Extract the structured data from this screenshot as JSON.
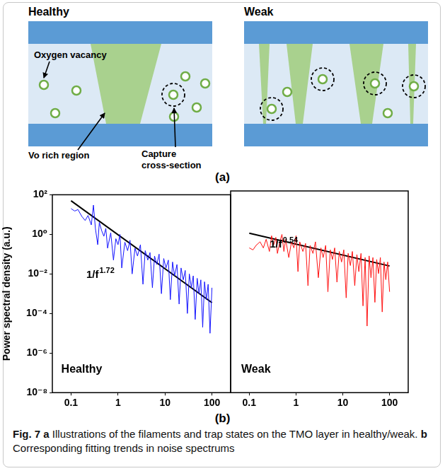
{
  "figure": {
    "panel_letters": [
      "(a)",
      "(b)"
    ],
    "caption": {
      "label": "Fig. 7",
      "parts": [
        {
          "letter": "a",
          "text": "Illustrations of the filaments and trap states on the TMO layer in healthy/weak."
        },
        {
          "letter": "b",
          "text": "Corresponding fitting trends in noise spectrums"
        }
      ]
    }
  },
  "diagram": {
    "panels": [
      {
        "title": "Healthy",
        "labels": {
          "vacancy": "Oxygen vacancy",
          "region": "Vo rich region",
          "capture": "Capture cross-section"
        }
      },
      {
        "title": "Weak"
      }
    ]
  },
  "chart_data": [
    {
      "type": "line",
      "log": true,
      "grid": false,
      "tick_labels": true,
      "ylabel": "Power spectral density (a.u.)",
      "xlim": [
        0.04,
        250
      ],
      "ylim": [
        1e-08,
        100
      ],
      "xticks": [
        0.1,
        1,
        10,
        100
      ],
      "yticks": [
        {
          "value": 1e-08,
          "label": "10⁻⁸"
        },
        {
          "value": 1e-06,
          "label": "10⁻⁶"
        },
        {
          "value": 0.0001,
          "label": "10⁻⁴"
        },
        {
          "value": 0.01,
          "label": "10⁻²"
        },
        {
          "value": 1,
          "label": "10⁰"
        },
        {
          "value": 100,
          "label": "10²"
        }
      ],
      "annotations": [
        "Healthy"
      ],
      "series": [
        {
          "type": "line",
          "color": "#1414ff",
          "line_style": "solid",
          "x": [
            0.1,
            0.12,
            0.14,
            0.17,
            0.2,
            0.23,
            0.27,
            0.3,
            0.33,
            0.37,
            0.4,
            0.45,
            0.5,
            0.55,
            0.6,
            0.7,
            0.8,
            0.9,
            1,
            1.1,
            1.2,
            1.4,
            1.6,
            1.8,
            2,
            2.3,
            2.6,
            3,
            3.4,
            3.8,
            4.3,
            4.8,
            5.4,
            6,
            6.7,
            7.5,
            8.4,
            9.4,
            10.5,
            11.8,
            13,
            14.5,
            16,
            18,
            20,
            22,
            24.5,
            27,
            30,
            33,
            36.5,
            40,
            44,
            48.5,
            53,
            58,
            63.5,
            69.5,
            76,
            83,
            91,
            100
          ],
          "values": [
            20,
            15,
            18,
            8,
            5,
            9,
            3,
            30,
            2,
            0.3,
            4,
            1.5,
            0.8,
            2,
            0.2,
            1.2,
            0.05,
            0.6,
            0.3,
            1,
            0.02,
            0.4,
            0.15,
            0.5,
            0.01,
            0.2,
            0.08,
            0.3,
            0.003,
            0.15,
            0.05,
            0.12,
            0.002,
            0.08,
            0.03,
            0.1,
            0.001,
            0.06,
            0.02,
            0.05,
            0.0005,
            0.04,
            0.008,
            0.03,
            0.0003,
            0.02,
            0.005,
            0.015,
            0.0001,
            0.01,
            0.002,
            0.008,
            5e-05,
            0.006,
            0.001,
            0.005,
            2e-05,
            0.004,
            0.0005,
            0.003,
            1e-05,
            0.002
          ]
        },
        {
          "type": "line",
          "color": "#000000",
          "line_style": "solid",
          "label": "1/f",
          "exponent": 1.72,
          "x": [
            0.1,
            100
          ],
          "values": [
            50,
            0.00035
          ]
        }
      ]
    },
    {
      "type": "line",
      "log": true,
      "grid": false,
      "tick_labels": "x",
      "xlim": [
        0.04,
        250
      ],
      "ylim": [
        1e-08,
        100
      ],
      "xticks": [
        0.1,
        1,
        10,
        100
      ],
      "yticks": [
        {
          "value": 1e-08,
          "label": "10⁻⁸"
        },
        {
          "value": 1e-06,
          "label": "10⁻⁶"
        },
        {
          "value": 0.0001,
          "label": "10⁻⁴"
        },
        {
          "value": 0.01,
          "label": "10⁻²"
        },
        {
          "value": 1,
          "label": "10⁰"
        },
        {
          "value": 100,
          "label": "10²"
        }
      ],
      "annotations": [
        "Weak"
      ],
      "series": [
        {
          "type": "line",
          "color": "#ff1010",
          "line_style": "solid",
          "x": [
            0.1,
            0.12,
            0.14,
            0.17,
            0.2,
            0.23,
            0.27,
            0.3,
            0.33,
            0.37,
            0.4,
            0.45,
            0.5,
            0.55,
            0.6,
            0.7,
            0.8,
            0.9,
            1,
            1.1,
            1.2,
            1.4,
            1.6,
            1.8,
            2,
            2.3,
            2.6,
            3,
            3.4,
            3.8,
            4.3,
            4.8,
            5.4,
            6,
            6.7,
            7.5,
            8.4,
            9.4,
            10.5,
            11.8,
            13,
            14.5,
            16,
            18,
            20,
            22,
            24.5,
            27,
            30,
            33,
            36.5,
            40,
            44,
            48.5,
            53,
            58,
            63.5,
            69.5,
            76,
            83,
            91,
            100
          ],
          "values": [
            0.15,
            0.12,
            0.2,
            0.3,
            0.15,
            0.4,
            0.1,
            0.6,
            0.2,
            0.5,
            0.08,
            0.3,
            0.7,
            0.1,
            0.4,
            0.05,
            0.3,
            0.15,
            0.6,
            0.01,
            0.3,
            0.1,
            0.25,
            0.002,
            0.2,
            0.08,
            0.3,
            0.005,
            0.15,
            0.05,
            0.2,
            0.001,
            0.12,
            0.04,
            0.15,
            0.003,
            0.1,
            0.03,
            0.12,
            0.0005,
            0.08,
            0.02,
            0.1,
            0.002,
            0.07,
            0.01,
            0.08,
            0.0002,
            0.05,
            2e-05,
            0.06,
            0.005,
            0.05,
            0.0003,
            0.04,
            0.008,
            0.05,
            0.0001,
            0.03,
            0.004,
            0.03,
            0.001
          ]
        },
        {
          "type": "line",
          "color": "#000000",
          "line_style": "solid",
          "label": "1/f",
          "exponent": 0.54,
          "x": [
            0.1,
            100
          ],
          "values": [
            0.8,
            0.019
          ]
        }
      ]
    }
  ]
}
